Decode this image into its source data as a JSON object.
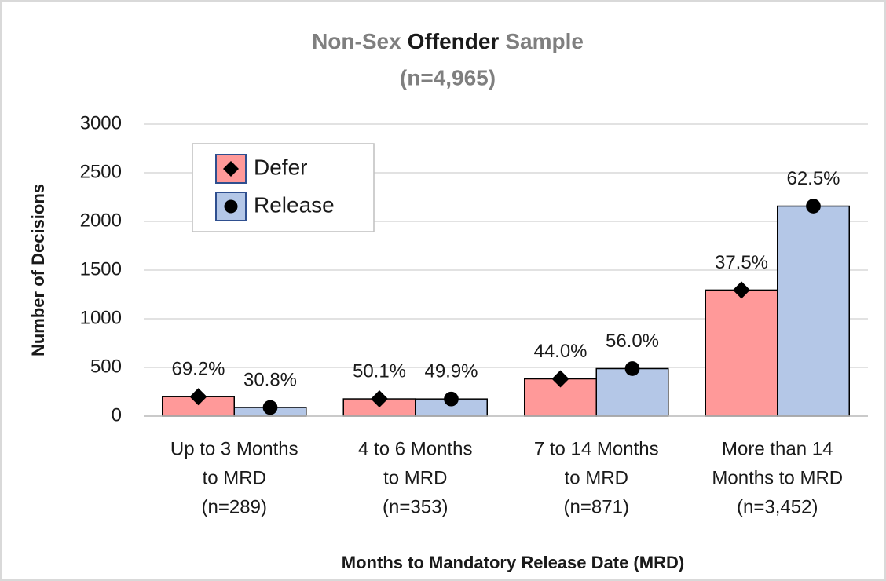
{
  "chart_data": {
    "type": "bar",
    "title_parts": [
      "Non-Sex",
      "Offender",
      "Sample"
    ],
    "subtitle": "(n=4,965)",
    "x_label": "Months to Mandatory Release Date (MRD)",
    "y_label": "Number of Decisions",
    "categories": [
      [
        "Up to 3 Months",
        "to MRD",
        "(n=289)"
      ],
      [
        "4 to 6 Months",
        "to MRD",
        "(n=353)"
      ],
      [
        "7 to 14 Months",
        "to MRD",
        "(n=871)"
      ],
      [
        "More than 14",
        "Months to MRD",
        "(n=3,452)"
      ]
    ],
    "series": [
      {
        "name": "Defer",
        "color": "#ff9999",
        "marker": "diamond",
        "values": [
          200,
          177,
          383,
          1295
        ],
        "share_labels": [
          "69.2%",
          "50.1%",
          "44.0%",
          "37.5%"
        ]
      },
      {
        "name": "Release",
        "color": "#b4c7e7",
        "marker": "circle",
        "values": [
          89,
          176,
          488,
          2157
        ],
        "share_labels": [
          "30.8%",
          "49.9%",
          "56.0%",
          "62.5%"
        ]
      }
    ],
    "ylim": [
      0,
      3000
    ],
    "yticks": [
      0,
      500,
      1000,
      1500,
      2000,
      2500,
      3000
    ],
    "grid": true,
    "legend": "upper left"
  }
}
